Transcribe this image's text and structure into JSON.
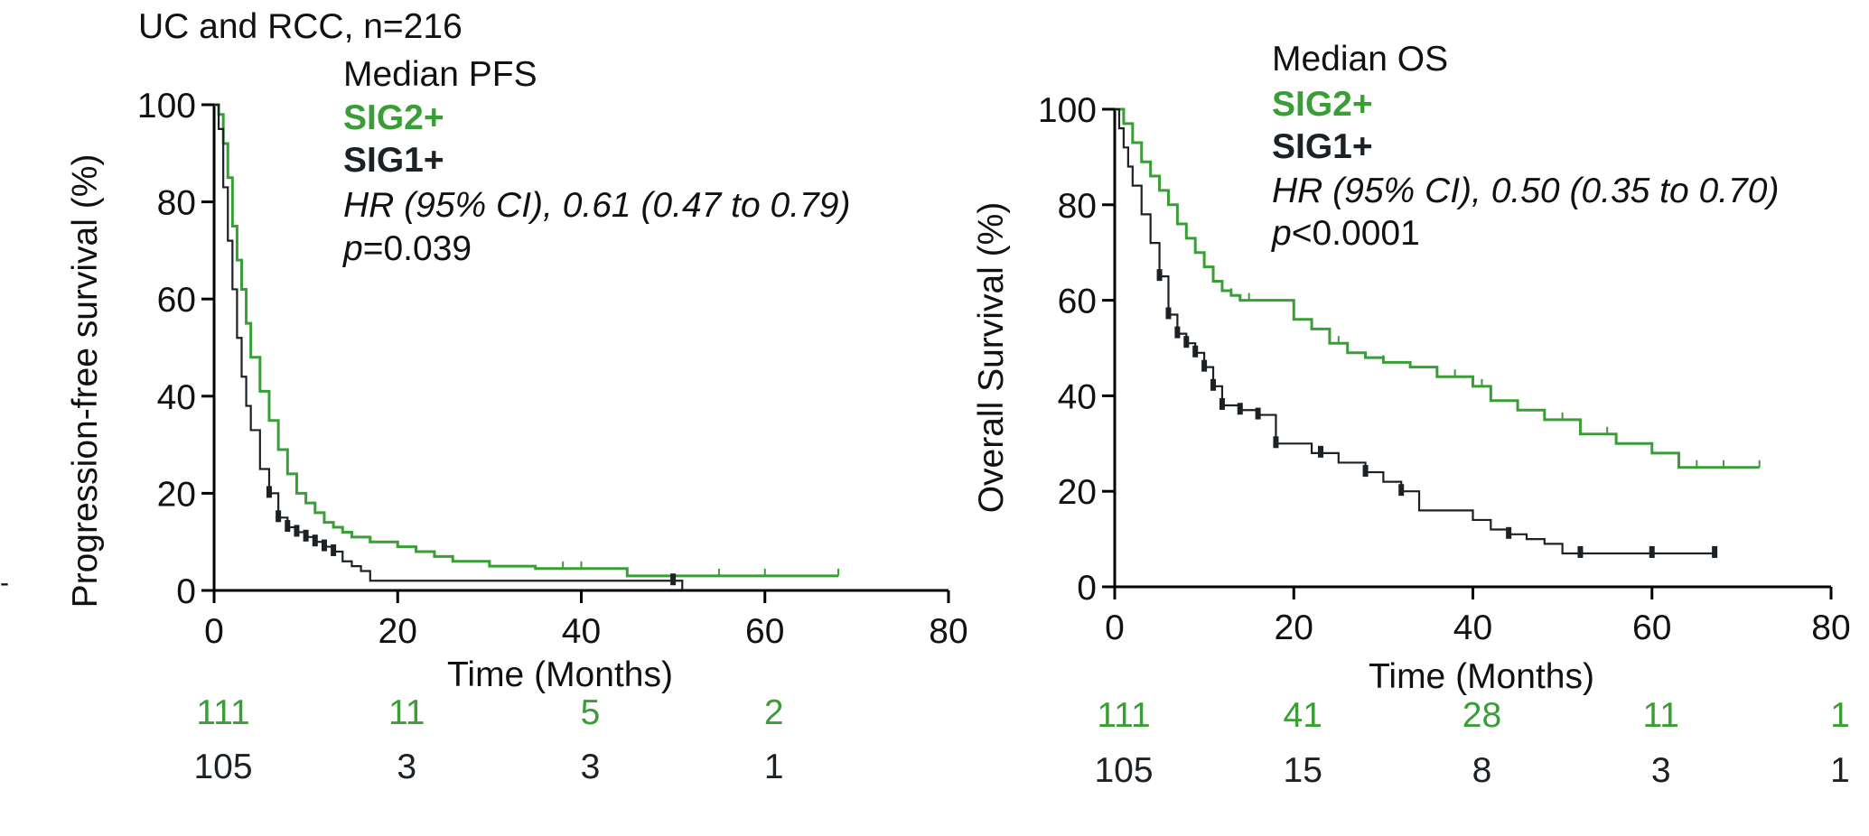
{
  "figure_title": "UC and RCC, n=216",
  "colors": {
    "sig2": "#3a9e36",
    "sig1": "#1c2126",
    "axis": "#000000"
  },
  "chart_data": [
    {
      "type": "line",
      "subtype": "kaplan-meier",
      "legend_title": "Median PFS",
      "xlabel": "Time (Months)",
      "ylabel": "Progression-free survival (%)",
      "xlim": [
        0,
        80
      ],
      "ylim": [
        0,
        100
      ],
      "xticks": [
        0,
        20,
        40,
        60,
        80
      ],
      "yticks": [
        0,
        20,
        40,
        60,
        80,
        100
      ],
      "hr_label": "HR (95% CI), 0.61 (0.47 to 0.79)",
      "p_prefix": "p",
      "p_value": "=0.039",
      "series": [
        {
          "name": "SIG2+",
          "x": [
            0,
            0.5,
            1,
            1.5,
            2,
            2.5,
            3,
            3.5,
            4,
            5,
            6,
            7,
            8,
            9,
            10,
            11,
            12,
            13,
            14,
            15,
            17,
            20,
            22,
            24,
            26,
            30,
            35,
            40,
            45,
            50,
            55,
            60,
            65,
            68
          ],
          "y": [
            100,
            98,
            92,
            85,
            75,
            68,
            62,
            55,
            48,
            41,
            35,
            29,
            24,
            20,
            18,
            16,
            14,
            13,
            12,
            11,
            10,
            9,
            8,
            7,
            6,
            5,
            4.5,
            4.5,
            3,
            3,
            3,
            3,
            3,
            3
          ],
          "censor_x": [
            38,
            40,
            55,
            60,
            68
          ]
        },
        {
          "name": "SIG1+",
          "x": [
            0,
            0.5,
            1,
            1.5,
            2,
            2.5,
            3,
            3.5,
            4,
            5,
            6,
            7,
            8,
            9,
            10,
            11,
            12,
            13,
            14,
            15,
            16,
            17,
            20,
            30,
            40,
            50,
            51
          ],
          "y": [
            100,
            95,
            83,
            72,
            62,
            52,
            44,
            38,
            33,
            25,
            20,
            15,
            13,
            12,
            11,
            10,
            9,
            8,
            6,
            5,
            4,
            2,
            2,
            2,
            2,
            2,
            0
          ],
          "censor_x": [
            6,
            7,
            8,
            9,
            10,
            11,
            12,
            13,
            50
          ]
        }
      ],
      "risk_table": {
        "times": [
          0,
          20,
          40,
          60
        ],
        "rows": [
          {
            "series": "SIG2+",
            "counts": [
              "111",
              "11",
              "5",
              "2"
            ]
          },
          {
            "series": "SIG1+",
            "counts": [
              "105",
              "3",
              "3",
              "1"
            ]
          }
        ]
      }
    },
    {
      "type": "line",
      "subtype": "kaplan-meier",
      "legend_title": "Median OS",
      "xlabel": "Time (Months)",
      "ylabel": "Overall Survival (%)",
      "xlim": [
        0,
        80
      ],
      "ylim": [
        0,
        100
      ],
      "xticks": [
        0,
        20,
        40,
        60,
        80
      ],
      "yticks": [
        0,
        20,
        40,
        60,
        80,
        100
      ],
      "hr_label": "HR (95% CI), 0.50 (0.35 to 0.70)",
      "p_prefix": "p",
      "p_value": "<0.0001",
      "series": [
        {
          "name": "SIG2+",
          "x": [
            0,
            1,
            2,
            3,
            4,
            5,
            6,
            7,
            8,
            9,
            10,
            11,
            12,
            13,
            14,
            16,
            18,
            20,
            22,
            24,
            26,
            28,
            30,
            33,
            36,
            40,
            42,
            45,
            48,
            52,
            56,
            60,
            63,
            66,
            72
          ],
          "y": [
            100,
            97,
            93,
            89,
            86,
            83,
            80,
            76,
            73,
            70,
            67,
            64,
            62,
            61,
            60,
            60,
            60,
            56,
            54,
            51,
            49,
            48,
            47,
            46,
            44,
            42,
            39,
            37,
            35,
            32,
            30,
            28,
            25,
            25,
            25
          ],
          "censor_x": [
            5,
            8,
            13,
            15,
            25,
            30,
            38,
            41,
            50,
            55,
            63,
            65,
            68,
            72
          ]
        },
        {
          "name": "SIG1+",
          "x": [
            0,
            0.5,
            1,
            1.5,
            2,
            3,
            4,
            5,
            6,
            7,
            8,
            9,
            10,
            11,
            12,
            14,
            16,
            18,
            20,
            22,
            25,
            28,
            30,
            32,
            34,
            36,
            38,
            40,
            42,
            44,
            46,
            48,
            50,
            55,
            60,
            67
          ],
          "y": [
            100,
            96,
            92,
            88,
            84,
            78,
            72,
            65,
            57,
            53,
            51,
            49,
            46,
            42,
            38,
            37,
            36,
            30,
            30,
            28,
            26,
            24,
            22,
            20,
            16,
            16,
            16,
            14,
            12,
            11,
            10,
            9,
            7,
            7,
            7,
            7
          ],
          "censor_x": [
            5,
            6,
            7,
            8,
            9,
            10,
            11,
            12,
            14,
            16,
            18,
            23,
            28,
            32,
            44,
            52,
            60,
            67
          ]
        }
      ],
      "risk_table": {
        "times": [
          0,
          20,
          40,
          60,
          80
        ],
        "rows": [
          {
            "series": "SIG2+",
            "counts": [
              "111",
              "41",
              "28",
              "11",
              "1"
            ]
          },
          {
            "series": "SIG1+",
            "counts": [
              "105",
              "15",
              "8",
              "3",
              "1"
            ]
          }
        ]
      }
    }
  ]
}
